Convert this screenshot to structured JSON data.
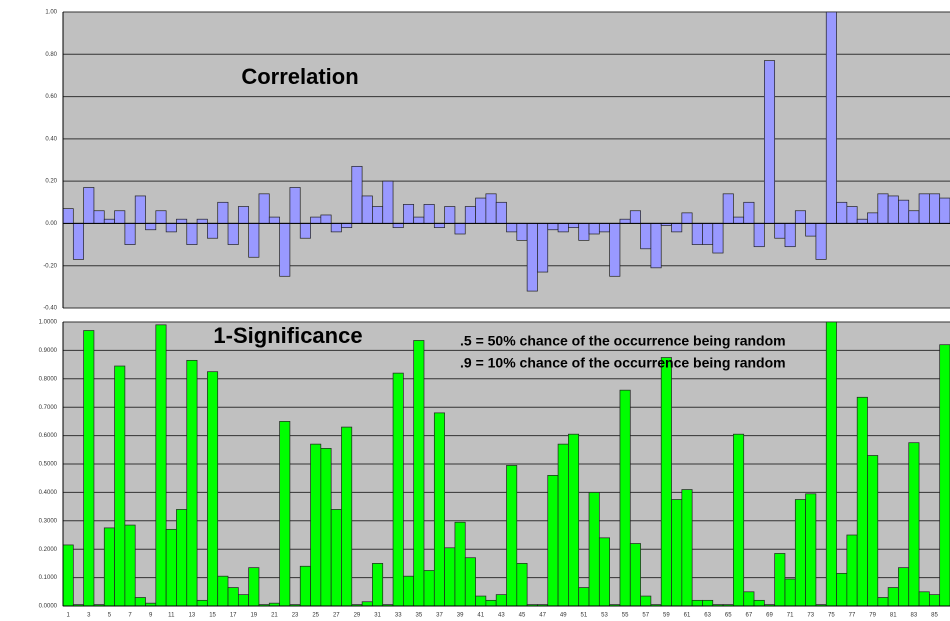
{
  "chart_data": [
    {
      "type": "bar",
      "title": "Correlation",
      "color": "#9999ff",
      "grid": true,
      "ylim": [
        -0.4,
        1.0
      ],
      "yticks": [
        {
          "value": -0.4,
          "label": "-0.40"
        },
        {
          "value": -0.2,
          "label": "-0.20"
        },
        {
          "value": 0,
          "label": "0.00"
        },
        {
          "value": 0.2,
          "label": "0.20"
        },
        {
          "value": 0.4,
          "label": "0.40"
        },
        {
          "value": 0.6,
          "label": "0.60"
        },
        {
          "value": 0.8,
          "label": "0.80"
        },
        {
          "value": 1.0,
          "label": "1.00"
        }
      ],
      "values": [
        0.07,
        -0.17,
        0.17,
        0.06,
        0.02,
        0.06,
        -0.1,
        0.13,
        -0.03,
        0.06,
        -0.04,
        0.02,
        -0.1,
        0.02,
        -0.07,
        0.1,
        -0.1,
        0.08,
        -0.16,
        0.14,
        0.03,
        -0.25,
        0.17,
        -0.07,
        0.03,
        0.04,
        -0.04,
        -0.02,
        0.27,
        0.13,
        0.08,
        0.2,
        -0.02,
        0.09,
        0.03,
        0.09,
        -0.02,
        0.08,
        -0.05,
        0.08,
        0.12,
        0.14,
        0.1,
        -0.04,
        -0.08,
        -0.32,
        -0.23,
        -0.03,
        -0.04,
        -0.02,
        -0.08,
        -0.05,
        -0.04,
        -0.25,
        0.02,
        0.06,
        -0.12,
        -0.21,
        -0.01,
        -0.04,
        0.05,
        -0.1,
        -0.1,
        -0.14,
        0.14,
        0.03,
        0.1,
        -0.11,
        0.77,
        -0.07,
        -0.11,
        0.06,
        -0.06,
        -0.17,
        1.0,
        0.1,
        0.08,
        0.02,
        0.05,
        0.14,
        0.13,
        0.11,
        0.06,
        0.14,
        0.14,
        0.12
      ]
    },
    {
      "type": "bar",
      "title": "1-Significance",
      "color": "#00ff00",
      "grid": true,
      "annotations": [
        ".5 = 50% chance of the occurrence being random",
        ".9 = 10% chance of the occurrence being random"
      ],
      "ylim": [
        0,
        1.0
      ],
      "yticks": [
        {
          "value": 0,
          "label": "0.0000"
        },
        {
          "value": 0.1,
          "label": "0.1000"
        },
        {
          "value": 0.2,
          "label": "0.2000"
        },
        {
          "value": 0.3,
          "label": "0.3000"
        },
        {
          "value": 0.4,
          "label": "0.4000"
        },
        {
          "value": 0.5,
          "label": "0.5000"
        },
        {
          "value": 0.6,
          "label": "0.6000"
        },
        {
          "value": 0.7,
          "label": "0.7000"
        },
        {
          "value": 0.8,
          "label": "0.8000"
        },
        {
          "value": 0.9,
          "label": "0.9000"
        },
        {
          "value": 1.0,
          "label": "1.0000"
        }
      ],
      "categories": [
        "1",
        null,
        "3",
        null,
        "5",
        null,
        "7",
        null,
        "9",
        null,
        "11",
        null,
        "13",
        null,
        "15",
        null,
        "17",
        null,
        "19",
        null,
        "21",
        null,
        "23",
        null,
        "25",
        null,
        "27",
        null,
        "29",
        null,
        "31",
        null,
        "33",
        null,
        "35",
        null,
        "37",
        null,
        "39",
        null,
        "41",
        null,
        "43",
        null,
        "45",
        null,
        "47",
        null,
        "49",
        null,
        "51",
        null,
        "53",
        null,
        "55",
        null,
        "57",
        null,
        "59",
        null,
        "61",
        null,
        "63",
        null,
        "65",
        null,
        "67",
        null,
        "69",
        null,
        "71",
        null,
        "73",
        null,
        "75",
        null,
        "77",
        null,
        "79",
        null,
        "81",
        null,
        "83",
        null,
        "85",
        null
      ],
      "values": [
        0.215,
        0.005,
        0.97,
        0.005,
        0.275,
        0.845,
        0.285,
        0.03,
        0.01,
        0.99,
        0.27,
        0.34,
        0.865,
        0.02,
        0.825,
        0.105,
        0.065,
        0.04,
        0.135,
        0.005,
        0.01,
        0.65,
        0.005,
        0.14,
        0.57,
        0.555,
        0.34,
        0.63,
        0.005,
        0.015,
        0.15,
        0.005,
        0.82,
        0.105,
        0.935,
        0.125,
        0.68,
        0.205,
        0.295,
        0.17,
        0.035,
        0.02,
        0.04,
        0.495,
        0.15,
        0.005,
        0.005,
        0.46,
        0.57,
        0.605,
        0.065,
        0.4,
        0.24,
        0.005,
        0.76,
        0.22,
        0.035,
        0.005,
        0.875,
        0.375,
        0.41,
        0.02,
        0.02,
        0.005,
        0.005,
        0.605,
        0.05,
        0.02,
        0.005,
        0.185,
        0.095,
        0.375,
        0.395,
        0.005,
        1.0,
        0.115,
        0.25,
        0.735,
        0.53,
        0.03,
        0.065,
        0.135,
        0.575,
        0.05,
        0.04,
        0.92
      ]
    }
  ]
}
